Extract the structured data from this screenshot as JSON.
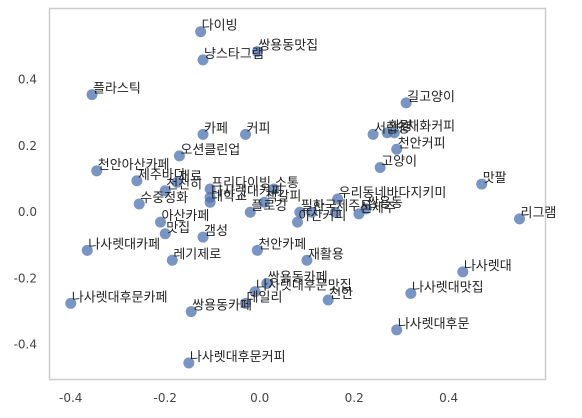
{
  "chart_data": {
    "type": "scatter",
    "title": "",
    "xlabel": "",
    "ylabel": "",
    "xlim": [
      -0.445,
      0.605
    ],
    "ylim": [
      -0.505,
      0.615
    ],
    "x_ticks": [
      -0.4,
      -0.2,
      0.0,
      0.2,
      0.4
    ],
    "y_ticks": [
      0.4,
      0.2,
      0.0,
      -0.2,
      -0.4
    ],
    "x_tick_labels": [
      "-0.4",
      "-0.2",
      "0.0",
      "0.2",
      "0.4"
    ],
    "y_tick_labels": [
      "0.4",
      "0.2",
      "0.0",
      "-0.2",
      "-0.4"
    ],
    "grid": false,
    "legend": "none",
    "point_color": "#4c72b0",
    "points": [
      {
        "label": "다이빙",
        "x": -0.125,
        "y": 0.545
      },
      {
        "label": "쌍용동맛집",
        "x": -0.005,
        "y": 0.485
      },
      {
        "label": "냥스타그램",
        "x": -0.12,
        "y": 0.46
      },
      {
        "label": "플라스틱",
        "x": -0.355,
        "y": 0.355
      },
      {
        "label": "길고양이",
        "x": 0.31,
        "y": 0.33
      },
      {
        "label": "카페",
        "x": -0.12,
        "y": 0.235
      },
      {
        "label": "커피",
        "x": -0.03,
        "y": 0.235
      },
      {
        "label": "서랍장",
        "x": 0.24,
        "y": 0.235
      },
      {
        "label": "환경",
        "x": 0.27,
        "y": 0.24
      },
      {
        "label": "수채화커피",
        "x": 0.285,
        "y": 0.24
      },
      {
        "label": "천안커피",
        "x": 0.29,
        "y": 0.19
      },
      {
        "label": "오션클린업",
        "x": -0.17,
        "y": 0.17
      },
      {
        "label": "고양이",
        "x": 0.255,
        "y": 0.135
      },
      {
        "label": "천안아산카페",
        "x": -0.345,
        "y": 0.125
      },
      {
        "label": "맛팔",
        "x": 0.47,
        "y": 0.085
      },
      {
        "label": "제주바다",
        "x": -0.26,
        "y": 0.095
      },
      {
        "label": "재료",
        "x": -0.175,
        "y": 0.09
      },
      {
        "label": "프리다이빙",
        "x": -0.105,
        "y": 0.07
      },
      {
        "label": "소통",
        "x": 0.03,
        "y": 0.07
      },
      {
        "label": "천천히",
        "x": -0.2,
        "y": 0.065
      },
      {
        "label": "나사렛대커피",
        "x": -0.105,
        "y": 0.045
      },
      {
        "label": "우리동네바다지키미",
        "x": 0.165,
        "y": 0.04
      },
      {
        "label": "수중정화",
        "x": -0.255,
        "y": 0.025
      },
      {
        "label": "대학교",
        "x": -0.105,
        "y": 0.03
      },
      {
        "label": "책갈피",
        "x": 0.01,
        "y": 0.03
      },
      {
        "label": "쌍용동",
        "x": 0.225,
        "y": 0.01
      },
      {
        "label": "플로깅",
        "x": -0.02,
        "y": 0.0
      },
      {
        "label": "필사",
        "x": 0.085,
        "y": 0.0
      },
      {
        "label": "한국",
        "x": 0.11,
        "y": 0.0
      },
      {
        "label": "제주도",
        "x": 0.16,
        "y": 0.0
      },
      {
        "label": "신제주",
        "x": 0.21,
        "y": -0.005
      },
      {
        "label": "리그램",
        "x": 0.55,
        "y": -0.02
      },
      {
        "label": "아산카페",
        "x": -0.21,
        "y": -0.03
      },
      {
        "label": "아산커피",
        "x": 0.08,
        "y": -0.03
      },
      {
        "label": "맛집",
        "x": -0.2,
        "y": -0.065
      },
      {
        "label": "갬성",
        "x": -0.12,
        "y": -0.075
      },
      {
        "label": "나사렛대카페",
        "x": -0.365,
        "y": -0.115
      },
      {
        "label": "천안카페",
        "x": -0.005,
        "y": -0.115
      },
      {
        "label": "레기제로",
        "x": -0.185,
        "y": -0.145
      },
      {
        "label": "재활용",
        "x": 0.1,
        "y": -0.145
      },
      {
        "label": "나사렛대",
        "x": 0.43,
        "y": -0.18
      },
      {
        "label": "쌍용동카페",
        "x": 0.015,
        "y": -0.215
      },
      {
        "label": "나사렛대후문맛집",
        "x": -0.01,
        "y": -0.24
      },
      {
        "label": "나사렛대맛집",
        "x": 0.32,
        "y": -0.245
      },
      {
        "label": "나사렛대후문카페",
        "x": -0.4,
        "y": -0.275
      },
      {
        "label": "천안",
        "x": 0.145,
        "y": -0.265
      },
      {
        "label": "데일리",
        "x": -0.03,
        "y": -0.275
      },
      {
        "label": "쌍용동카페",
        "x": -0.145,
        "y": -0.3
      },
      {
        "label": "나사렛대후문",
        "x": 0.29,
        "y": -0.355
      },
      {
        "label": "나사렛대후문커피",
        "x": -0.15,
        "y": -0.455
      }
    ]
  }
}
